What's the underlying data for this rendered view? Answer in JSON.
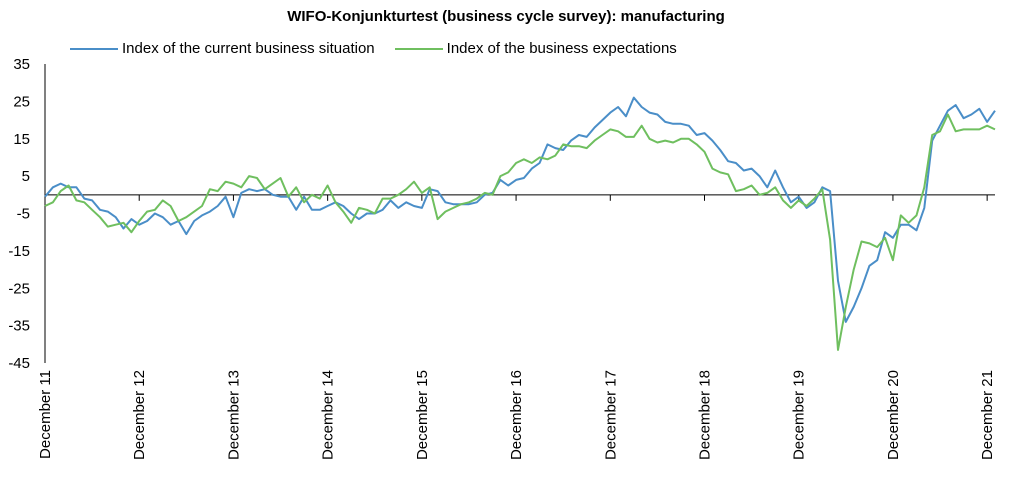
{
  "chart_data": {
    "type": "line",
    "title": "WIFO-Konjunkturtest (business cycle survey): manufacturing",
    "ylim": [
      -45,
      35
    ],
    "yticks": [
      35,
      25,
      15,
      5,
      -5,
      -15,
      -25,
      -35,
      -45
    ],
    "x_start": "2011-12",
    "x_end": "2021-12",
    "xtick_labels": [
      "December 11",
      "December 12",
      "December 13",
      "December 14",
      "December 15",
      "December 16",
      "December 17",
      "December 18",
      "December 19",
      "December 20",
      "December 21"
    ],
    "legend_position": "top",
    "grid": false,
    "series": [
      {
        "name": "Index of the current business situation",
        "color": "#4a8ec8",
        "values": [
          -0.5,
          2,
          3,
          2,
          2,
          -1,
          -1.5,
          -4,
          -4.5,
          -6,
          -9,
          -6.5,
          -8,
          -7,
          -5,
          -6,
          -8,
          -7,
          -10.5,
          -7,
          -5.5,
          -4.5,
          -3,
          -0.5,
          -6,
          0.5,
          1.5,
          1,
          1.5,
          0,
          -0.5,
          -0.5,
          -4,
          -0.5,
          -4,
          -4,
          -3,
          -2,
          -3,
          -5,
          -6.5,
          -5,
          -5,
          -4,
          -1.5,
          -3.5,
          -2,
          -3,
          -3.5,
          1.5,
          1,
          -2,
          -2.5,
          -2.5,
          -2.5,
          -2,
          0,
          0.5,
          4,
          2.5,
          4,
          4.5,
          7,
          8.5,
          13.5,
          12.5,
          12,
          14.5,
          16,
          15.5,
          18,
          20,
          22,
          23.5,
          21,
          26,
          23.5,
          22,
          21.5,
          19.5,
          19,
          19,
          18.5,
          16,
          16.5,
          14.5,
          12,
          9,
          8.5,
          6.5,
          7,
          5,
          2,
          6.5,
          2,
          -2,
          -0.5,
          -3.5,
          -2,
          2,
          1,
          -23,
          -34,
          -30,
          -25,
          -19,
          -17.5,
          -10,
          -11.5,
          -8,
          -8,
          -9.5,
          -3.5,
          14.5,
          18.5,
          22.5,
          24,
          20.5,
          21.5,
          23,
          19.5,
          22.5
        ]
      },
      {
        "name": "Index of the business expectations",
        "color": "#6fbf5f",
        "values": [
          -3,
          -2,
          1,
          2.5,
          -1.5,
          -2,
          -4,
          -6,
          -8.5,
          -8,
          -7.5,
          -10,
          -7,
          -4.5,
          -4,
          -1.5,
          -3,
          -7,
          -6,
          -4.5,
          -3,
          1.5,
          1,
          3.5,
          3,
          2,
          5,
          4.5,
          1.5,
          3,
          4.5,
          -0.5,
          2,
          -2,
          0,
          -1,
          2.5,
          -2,
          -4.5,
          -7.5,
          -3.5,
          -4,
          -5,
          -1,
          -1,
          0,
          1.5,
          3.5,
          0.5,
          2,
          -6.5,
          -4.5,
          -3.5,
          -2.5,
          -2,
          -1,
          0.5,
          0,
          5,
          6,
          8.5,
          9.5,
          8.5,
          10,
          9.5,
          10.5,
          13.5,
          13,
          13,
          12.5,
          14.5,
          16,
          17.5,
          17,
          15.5,
          15.5,
          18.5,
          15,
          14,
          14.5,
          14,
          15,
          15,
          13.5,
          11.5,
          7,
          6,
          5.5,
          1,
          1.5,
          2.5,
          0,
          0.5,
          2,
          -1.5,
          -3.5,
          -1.5,
          -3,
          -1,
          1.5,
          -12,
          -41.5,
          -30,
          -20,
          -12.5,
          -13,
          -14,
          -11.5,
          -17.5,
          -5.5,
          -7.5,
          -5.5,
          2,
          16,
          17,
          21.5,
          17,
          17.5,
          17.5,
          17.5,
          18.5,
          17.5
        ]
      }
    ]
  }
}
